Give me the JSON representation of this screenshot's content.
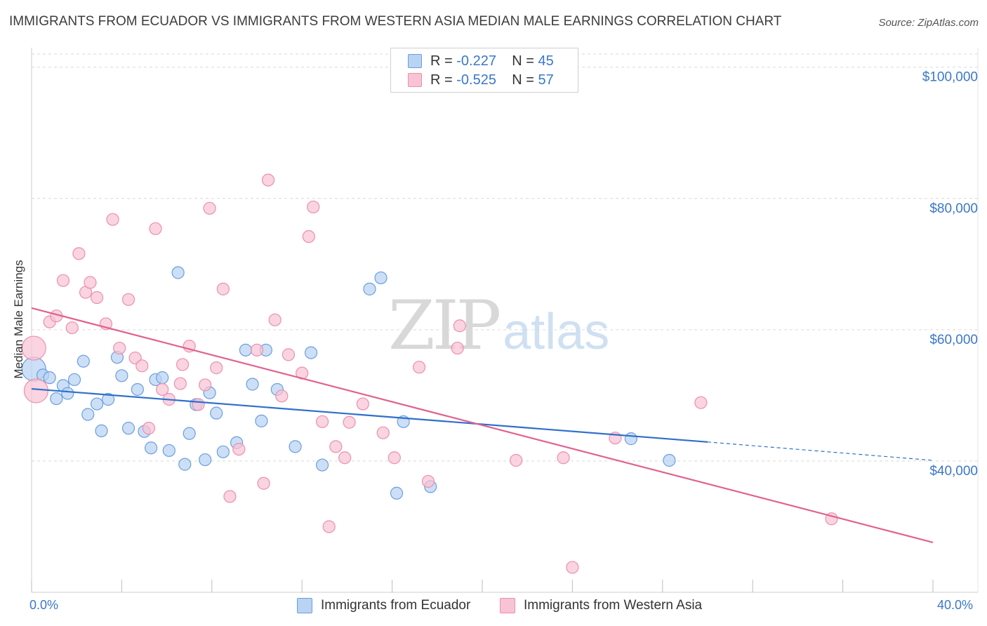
{
  "title": "IMMIGRANTS FROM ECUADOR VS IMMIGRANTS FROM WESTERN ASIA MEDIAN MALE EARNINGS CORRELATION CHART",
  "source": "Source: ZipAtlas.com",
  "watermark": {
    "zip": "ZIP",
    "atlas": "atlas"
  },
  "legend": {
    "series1": {
      "r_label": "R = ",
      "r_value": "-0.227",
      "n_label": "N = ",
      "n_value": "45"
    },
    "series2": {
      "r_label": "R = ",
      "r_value": "-0.525",
      "n_label": "N = ",
      "n_value": "57"
    }
  },
  "bottom_legend": {
    "series1": "Immigrants from Ecuador",
    "series2": "Immigrants from Western Asia"
  },
  "colors": {
    "blue_fill": "#b9d3f2",
    "blue_stroke": "#6a9fde",
    "blue_line": "#2e6fcc",
    "pink_fill": "#f8c3d4",
    "pink_stroke": "#ec8fae",
    "pink_line": "#e0628f",
    "tick_text": "#3a78c9",
    "grid": "#d9d9d9"
  },
  "chart_data": {
    "type": "scatter",
    "title": "IMMIGRANTS FROM ECUADOR VS IMMIGRANTS FROM WESTERN ASIA MEDIAN MALE EARNINGS CORRELATION CHART",
    "xlabel": "",
    "ylabel": "Median Male Earnings",
    "xlim": [
      0,
      40
    ],
    "ylim": [
      20000,
      102000
    ],
    "x_tick_labels": [
      "0.0%",
      "40.0%"
    ],
    "y_ticks": [
      {
        "value": 40000,
        "label": "$40,000"
      },
      {
        "value": 60000,
        "label": "$60,000"
      },
      {
        "value": 80000,
        "label": "$80,000"
      },
      {
        "value": 100000,
        "label": "$100,000"
      }
    ],
    "grid": true,
    "legend_position": "top-center",
    "series": [
      {
        "name": "Immigrants from Ecuador",
        "trend": {
          "x": [
            0,
            30
          ],
          "y": [
            51000,
            42900
          ],
          "dashed_to": [
            40,
            40100
          ]
        },
        "points": [
          {
            "x": 0.1,
            "y": 54000,
            "big": true
          },
          {
            "x": 0.5,
            "y": 53100
          },
          {
            "x": 0.8,
            "y": 52700
          },
          {
            "x": 1.1,
            "y": 49500
          },
          {
            "x": 1.4,
            "y": 51500
          },
          {
            "x": 1.6,
            "y": 50300
          },
          {
            "x": 1.9,
            "y": 52400
          },
          {
            "x": 2.3,
            "y": 55200
          },
          {
            "x": 2.5,
            "y": 47100
          },
          {
            "x": 2.9,
            "y": 48700
          },
          {
            "x": 3.1,
            "y": 44600
          },
          {
            "x": 3.4,
            "y": 49400
          },
          {
            "x": 3.8,
            "y": 55800
          },
          {
            "x": 4.0,
            "y": 53000
          },
          {
            "x": 4.3,
            "y": 45000
          },
          {
            "x": 4.7,
            "y": 50900
          },
          {
            "x": 5.0,
            "y": 44500
          },
          {
            "x": 5.3,
            "y": 42000
          },
          {
            "x": 5.5,
            "y": 52400
          },
          {
            "x": 5.8,
            "y": 52700
          },
          {
            "x": 6.1,
            "y": 41600
          },
          {
            "x": 6.5,
            "y": 68700
          },
          {
            "x": 6.8,
            "y": 39500
          },
          {
            "x": 7.0,
            "y": 44200
          },
          {
            "x": 7.3,
            "y": 48600
          },
          {
            "x": 7.7,
            "y": 40200
          },
          {
            "x": 7.9,
            "y": 50400
          },
          {
            "x": 8.2,
            "y": 47300
          },
          {
            "x": 8.5,
            "y": 41400
          },
          {
            "x": 9.1,
            "y": 42800
          },
          {
            "x": 9.5,
            "y": 56900
          },
          {
            "x": 9.8,
            "y": 51700
          },
          {
            "x": 10.2,
            "y": 46100
          },
          {
            "x": 10.4,
            "y": 56900
          },
          {
            "x": 10.9,
            "y": 50900
          },
          {
            "x": 11.7,
            "y": 42200
          },
          {
            "x": 12.4,
            "y": 56500
          },
          {
            "x": 12.9,
            "y": 39400
          },
          {
            "x": 15.0,
            "y": 66200
          },
          {
            "x": 15.5,
            "y": 67900
          },
          {
            "x": 16.2,
            "y": 35100
          },
          {
            "x": 16.5,
            "y": 46000
          },
          {
            "x": 17.7,
            "y": 36100
          },
          {
            "x": 26.6,
            "y": 43400
          },
          {
            "x": 28.3,
            "y": 40100
          }
        ]
      },
      {
        "name": "Immigrants from Western Asia",
        "trend": {
          "x": [
            0,
            40
          ],
          "y": [
            63300,
            27600
          ]
        },
        "points": [
          {
            "x": 0.1,
            "y": 57200,
            "big": true
          },
          {
            "x": 0.2,
            "y": 50700,
            "big": true
          },
          {
            "x": 0.8,
            "y": 61200
          },
          {
            "x": 1.1,
            "y": 62100
          },
          {
            "x": 1.4,
            "y": 67500
          },
          {
            "x": 1.8,
            "y": 60300
          },
          {
            "x": 2.1,
            "y": 71600
          },
          {
            "x": 2.4,
            "y": 65700
          },
          {
            "x": 2.6,
            "y": 67200
          },
          {
            "x": 2.9,
            "y": 64900
          },
          {
            "x": 3.3,
            "y": 60900
          },
          {
            "x": 3.6,
            "y": 76800
          },
          {
            "x": 3.9,
            "y": 57200
          },
          {
            "x": 4.3,
            "y": 64600
          },
          {
            "x": 4.6,
            "y": 55700
          },
          {
            "x": 4.9,
            "y": 54500
          },
          {
            "x": 5.2,
            "y": 45000
          },
          {
            "x": 5.5,
            "y": 75400
          },
          {
            "x": 5.8,
            "y": 50900
          },
          {
            "x": 6.1,
            "y": 49400
          },
          {
            "x": 6.6,
            "y": 51800
          },
          {
            "x": 6.7,
            "y": 54700
          },
          {
            "x": 7.0,
            "y": 57500
          },
          {
            "x": 7.4,
            "y": 48600
          },
          {
            "x": 7.7,
            "y": 51600
          },
          {
            "x": 7.9,
            "y": 78500
          },
          {
            "x": 8.2,
            "y": 54200
          },
          {
            "x": 8.5,
            "y": 66200
          },
          {
            "x": 8.8,
            "y": 34600
          },
          {
            "x": 9.2,
            "y": 41800
          },
          {
            "x": 10.0,
            "y": 56900
          },
          {
            "x": 10.3,
            "y": 36600
          },
          {
            "x": 10.5,
            "y": 82800
          },
          {
            "x": 10.8,
            "y": 61500
          },
          {
            "x": 11.1,
            "y": 49900
          },
          {
            "x": 11.4,
            "y": 56200
          },
          {
            "x": 12.0,
            "y": 53400
          },
          {
            "x": 12.3,
            "y": 74200
          },
          {
            "x": 12.5,
            "y": 78700
          },
          {
            "x": 12.9,
            "y": 46000
          },
          {
            "x": 13.2,
            "y": 30000
          },
          {
            "x": 13.5,
            "y": 42200
          },
          {
            "x": 13.9,
            "y": 40500
          },
          {
            "x": 14.1,
            "y": 45900
          },
          {
            "x": 14.7,
            "y": 48700
          },
          {
            "x": 15.6,
            "y": 44300
          },
          {
            "x": 16.1,
            "y": 40500
          },
          {
            "x": 17.2,
            "y": 54300
          },
          {
            "x": 17.6,
            "y": 36900
          },
          {
            "x": 18.9,
            "y": 57200
          },
          {
            "x": 19.0,
            "y": 60600
          },
          {
            "x": 21.5,
            "y": 40100
          },
          {
            "x": 23.6,
            "y": 40500
          },
          {
            "x": 24.0,
            "y": 23800
          },
          {
            "x": 25.9,
            "y": 43500
          },
          {
            "x": 29.7,
            "y": 48900
          },
          {
            "x": 35.5,
            "y": 31200
          }
        ]
      }
    ]
  }
}
